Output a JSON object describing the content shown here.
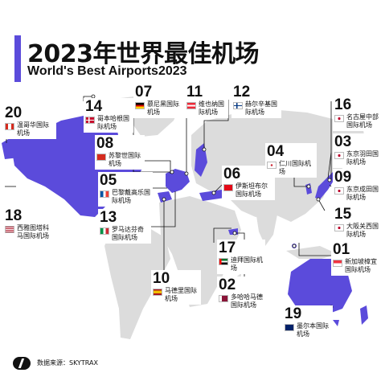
{
  "title": "2023年世界最佳机场",
  "subtitle": "World's Best Airports2023",
  "source": "数据来源：SKYTRAX",
  "colors": {
    "accent": "#5b4bdb",
    "land": "#dcdcdc",
    "highlight": "#5b4bdb"
  },
  "airports": [
    {
      "rank": "20",
      "name": "温哥华国际机场",
      "country": "Canada",
      "flag": "flag-canada-icon"
    },
    {
      "rank": "14",
      "name": "哥本哈根国际机场",
      "country": "Denmark",
      "flag": "flag-denmark-icon"
    },
    {
      "rank": "08",
      "name": "苏黎世国际机场",
      "country": "Switzerland",
      "flag": "flag-switzerland-icon"
    },
    {
      "rank": "05",
      "name": "巴黎戴高乐国际机场",
      "country": "France",
      "flag": "flag-france-icon"
    },
    {
      "rank": "13",
      "name": "罗马达芬奇国际机场",
      "country": "Italy",
      "flag": "flag-italy-icon"
    },
    {
      "rank": "18",
      "name": "西雅图塔科马国际机场",
      "country": "USA",
      "flag": "flag-usa-icon"
    },
    {
      "rank": "07",
      "name": "慕尼黑国际机场",
      "country": "Germany",
      "flag": "flag-germany-icon"
    },
    {
      "rank": "11",
      "name": "维也纳国际机场",
      "country": "Austria",
      "flag": "flag-austria-icon"
    },
    {
      "rank": "12",
      "name": "赫尔辛基国际机场",
      "country": "Finland",
      "flag": "flag-finland-icon"
    },
    {
      "rank": "06",
      "name": "伊斯坦布尔国际机场",
      "country": "Turkey",
      "flag": "flag-turkey-icon"
    },
    {
      "rank": "04",
      "name": "仁川国际机场",
      "country": "South Korea",
      "flag": "flag-korea-icon"
    },
    {
      "rank": "16",
      "name": "名古屋中部国际机场",
      "country": "Japan",
      "flag": "flag-japan-icon"
    },
    {
      "rank": "03",
      "name": "东京羽田国际机场",
      "country": "Japan",
      "flag": "flag-japan-icon"
    },
    {
      "rank": "09",
      "name": "东京成田国际机场",
      "country": "Japan",
      "flag": "flag-japan-icon"
    },
    {
      "rank": "15",
      "name": "大阪关西国际机场",
      "country": "Japan",
      "flag": "flag-japan-icon"
    },
    {
      "rank": "01",
      "name": "新加坡樟宜国际机场",
      "country": "Singapore",
      "flag": "flag-singapore-icon"
    },
    {
      "rank": "17",
      "name": "迪拜国际机场",
      "country": "UAE",
      "flag": "flag-uae-icon"
    },
    {
      "rank": "02",
      "name": "多哈哈马德国际机场",
      "country": "Qatar",
      "flag": "flag-qatar-icon"
    },
    {
      "rank": "10",
      "name": "马德里国际机场",
      "country": "Spain",
      "flag": "flag-spain-icon"
    },
    {
      "rank": "19",
      "name": "墨尔本国际机场",
      "country": "Australia",
      "flag": "flag-australia-icon"
    }
  ]
}
